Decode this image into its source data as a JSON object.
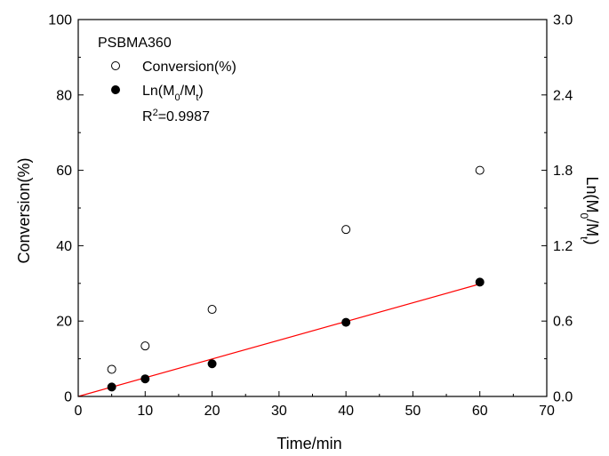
{
  "chart_data": {
    "type": "scatter",
    "title": "",
    "xlabel": "Time/min",
    "ylabel": "Conversion(%)",
    "y2label": {
      "base": "Ln(M",
      "sub1": "0",
      "mid": "/M",
      "sub2": "t",
      "end": ")"
    },
    "xlim": [
      0,
      70
    ],
    "ylim": [
      0,
      100
    ],
    "y2lim": [
      0,
      3.0
    ],
    "x_ticks": [
      "0",
      "10",
      "20",
      "30",
      "40",
      "50",
      "60",
      "70"
    ],
    "y_ticks": [
      "0",
      "20",
      "40",
      "60",
      "80",
      "100"
    ],
    "y2_ticks": [
      "0.0",
      "0.6",
      "1.2",
      "1.8",
      "2.4",
      "3.0"
    ],
    "grid": false,
    "legend": {
      "placement": "top-left",
      "header": "PSBMA360",
      "entries": [
        {
          "label": "Conversion(%)",
          "marker": "open-circle"
        },
        {
          "label": {
            "base": "Ln(M",
            "sub1": "0",
            "mid": "/M",
            "sub2": "t",
            "end": ")"
          },
          "marker": "filled-circle"
        }
      ],
      "r2": {
        "prefix": "R",
        "sup": "2",
        "suffix": "=0.9987"
      }
    },
    "series": [
      {
        "name": "Conversion(%)",
        "axis": "left",
        "marker": "open-circle",
        "x": [
          5,
          10,
          20,
          40,
          60
        ],
        "y": [
          7.2,
          13.4,
          23.1,
          44.3,
          60.0
        ]
      },
      {
        "name": "Ln(M0/Mt)",
        "axis": "right",
        "marker": "filled-circle",
        "x": [
          5,
          10,
          20,
          40,
          60
        ],
        "y": [
          0.075,
          0.14,
          0.26,
          0.59,
          0.91
        ]
      }
    ],
    "fit_line": {
      "axis": "right",
      "color": "#ff0000",
      "x": [
        0,
        60
      ],
      "y": [
        0,
        0.895
      ]
    }
  }
}
